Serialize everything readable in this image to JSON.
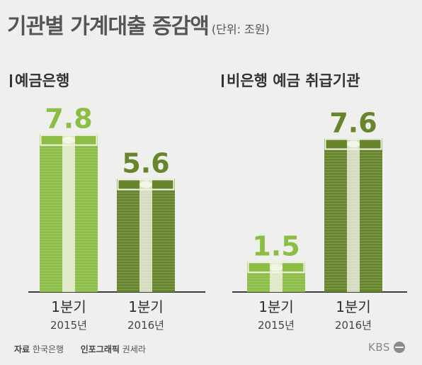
{
  "header": {
    "title": "기관별 가계대출 증감액",
    "unit": "(단위: 조원)"
  },
  "footer": {
    "source_label": "자료",
    "source": "한국은행",
    "credit_label": "인포그래픽",
    "credit": "권세라"
  },
  "logo": {
    "text": "KBS"
  },
  "colors": {
    "light_green": "#8cbd45",
    "dark_green": "#66852c",
    "background": "#efefed",
    "label_light": "#8cbd45",
    "label_dark": "#66852c"
  },
  "chart_data": [
    {
      "type": "bar",
      "title": "예금은행",
      "categories": [
        "1분기|2015년",
        "1분기|2016년"
      ],
      "values": [
        7.8,
        5.6
      ],
      "value_labels": [
        "7.8",
        "5.6"
      ],
      "cat_line1": [
        "1분기",
        "1분기"
      ],
      "cat_line2": [
        "2015년",
        "2016년"
      ],
      "bar_colors": [
        "#8cbd45",
        "#66852c"
      ],
      "ylim": [
        0,
        8
      ]
    },
    {
      "type": "bar",
      "title": "비은행 예금 취급기관",
      "categories": [
        "1분기|2015년",
        "1분기|2016년"
      ],
      "values": [
        1.5,
        7.6
      ],
      "value_labels": [
        "1.5",
        "7.6"
      ],
      "cat_line1": [
        "1분기",
        "1분기"
      ],
      "cat_line2": [
        "2015년",
        "2016년"
      ],
      "bar_colors": [
        "#8cbd45",
        "#66852c"
      ],
      "ylim": [
        0,
        8
      ]
    }
  ]
}
